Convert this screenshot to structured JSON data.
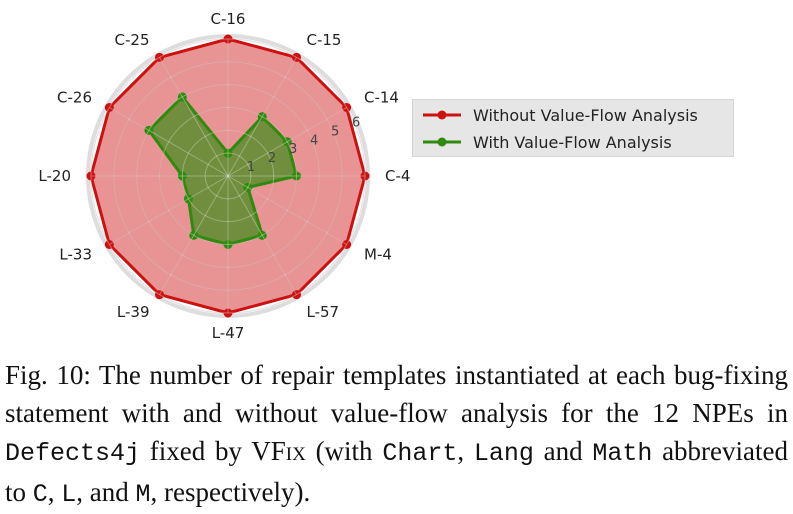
{
  "chart_data": {
    "type": "radar",
    "categories": [
      "C-16",
      "C-15",
      "C-14",
      "C-4",
      "M-4",
      "L-57",
      "L-47",
      "L-39",
      "L-33",
      "L-20",
      "C-26",
      "C-25"
    ],
    "rticks": [
      "1",
      "2",
      "3",
      "4",
      "5",
      "6"
    ],
    "rlim": [
      0,
      6
    ],
    "grid": true,
    "legend_position": "right",
    "series": [
      {
        "name": "Without Value-Flow Analysis",
        "color": "#cc1111",
        "values": [
          6,
          6,
          6,
          6,
          6,
          6,
          6,
          6,
          6,
          6,
          6,
          6
        ]
      },
      {
        "name": "With Value-Flow Analysis",
        "color": "#2f8a0e",
        "values": [
          1,
          3,
          3,
          3,
          1,
          3,
          3,
          3,
          2,
          2,
          4,
          4
        ]
      }
    ]
  },
  "caption": {
    "prefix": "Fig. 10: The number of repair templates instantiated at each bug-fixing statement with and without value-flow analysis for the 12 NPEs in ",
    "dataset": "Defects4j",
    "mid1": " fixed by ",
    "tool_v": "V",
    "tool_rest": "Fix",
    "mid2": " (with ",
    "chart": "Chart",
    "comma1": ", ",
    "lang": "Lang",
    "and1": " and ",
    "math": "Math",
    "mid3": " abbreviated to ",
    "c": "C",
    "comma2": ", ",
    "l": "L",
    "and2": ", and ",
    "m": "M",
    "suffix": ", respectively)."
  }
}
